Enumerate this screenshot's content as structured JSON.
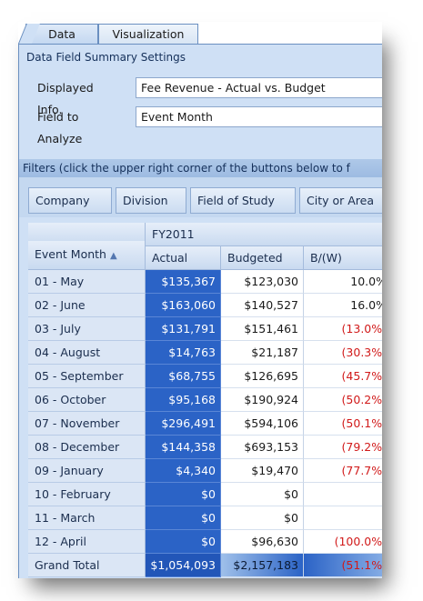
{
  "tabs": [
    {
      "label": "Data",
      "active": true
    },
    {
      "label": "Visualization",
      "active": false
    }
  ],
  "settings": {
    "title": "Data Field Summary Settings",
    "displayed_info_label": "Displayed Info.",
    "displayed_info_value": "Fee Revenue - Actual vs. Budget",
    "field_to_analyze_label": "Field to Analyze",
    "field_to_analyze_value": "Event Month"
  },
  "filters": {
    "instruction": "Filters (click the upper right corner of the buttons below to f",
    "chips": [
      "Company",
      "Division",
      "Field of Study",
      "City or Area"
    ]
  },
  "grid": {
    "row_field": "Event Month",
    "sort_icon": "sort-ascending-icon",
    "column_group": "FY2011",
    "columns": [
      "Actual",
      "Budgeted",
      "B/(W)"
    ],
    "rows": [
      {
        "label": "01 - May",
        "actual": "$135,367",
        "budgeted": "$123,030",
        "bw": "10.0%",
        "neg": false
      },
      {
        "label": "02 - June",
        "actual": "$163,060",
        "budgeted": "$140,527",
        "bw": "16.0%",
        "neg": false
      },
      {
        "label": "03 - July",
        "actual": "$131,791",
        "budgeted": "$151,461",
        "bw": "(13.0%)",
        "neg": true
      },
      {
        "label": "04 - August",
        "actual": "$14,763",
        "budgeted": "$21,187",
        "bw": "(30.3%)",
        "neg": true
      },
      {
        "label": "05 - September",
        "actual": "$68,755",
        "budgeted": "$126,695",
        "bw": "(45.7%)",
        "neg": true
      },
      {
        "label": "06 - October",
        "actual": "$95,168",
        "budgeted": "$190,924",
        "bw": "(50.2%)",
        "neg": true
      },
      {
        "label": "07 - November",
        "actual": "$296,491",
        "budgeted": "$594,106",
        "bw": "(50.1%)",
        "neg": true
      },
      {
        "label": "08 - December",
        "actual": "$144,358",
        "budgeted": "$693,153",
        "bw": "(79.2%)",
        "neg": true
      },
      {
        "label": "09 - January",
        "actual": "$4,340",
        "budgeted": "$19,470",
        "bw": "(77.7%)",
        "neg": true
      },
      {
        "label": "10 - February",
        "actual": "$0",
        "budgeted": "$0",
        "bw": "",
        "neg": false
      },
      {
        "label": "11 - March",
        "actual": "$0",
        "budgeted": "$0",
        "bw": "",
        "neg": false
      },
      {
        "label": "12 - April",
        "actual": "$0",
        "budgeted": "$96,630",
        "bw": "(100.0%)",
        "neg": true
      }
    ],
    "grand_total": {
      "label": "Grand Total",
      "actual": "$1,054,093",
      "budgeted": "$2,157,183",
      "bw": "(51.1%)",
      "neg": true
    }
  },
  "colors": {
    "actual_fill": "#2b63c6",
    "negative_text": "#d11a1a",
    "panel_background": "#cfe0f5"
  }
}
